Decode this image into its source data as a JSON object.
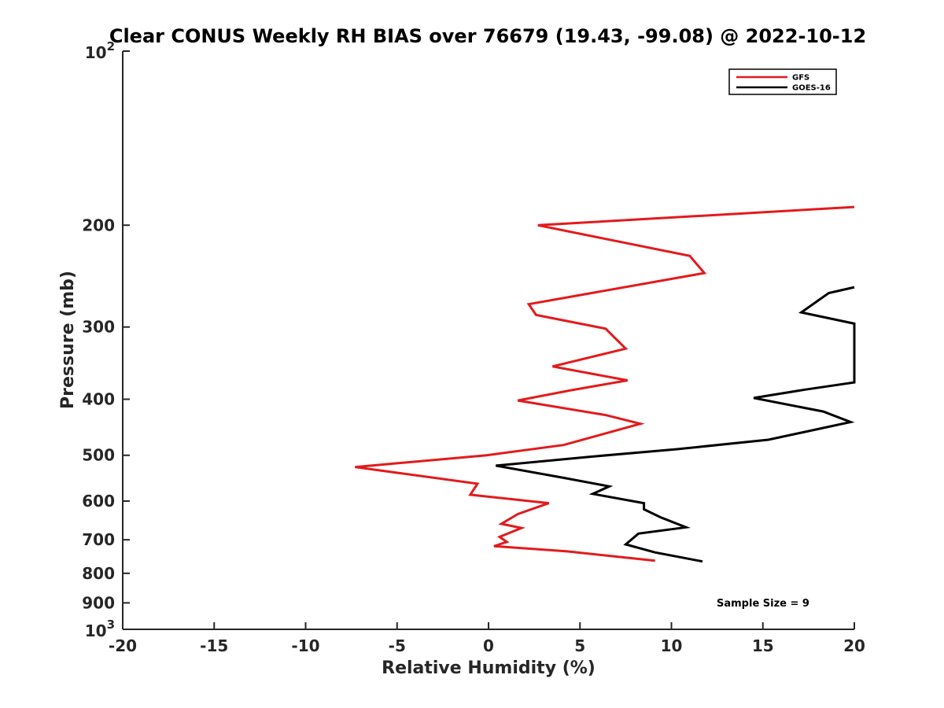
{
  "chart_data": {
    "type": "line",
    "title": "Clear CONUS Weekly RH BIAS over 76679 (19.43, -99.08) @ 2022-10-12",
    "xlabel": "Relative Humidity (%)",
    "ylabel": "Pressure (mb)",
    "xlim": [
      -20,
      20
    ],
    "ylim": [
      100,
      1000
    ],
    "y_scale": "log",
    "y_reversed": true,
    "x_ticks": [
      "-20",
      "-15",
      "-10",
      "-5",
      "0",
      "5",
      "10",
      "15",
      "20"
    ],
    "y_ticks": [
      {
        "value": 200,
        "label": "200"
      },
      {
        "value": 300,
        "label": "300"
      },
      {
        "value": 400,
        "label": "400"
      },
      {
        "value": 500,
        "label": "500"
      },
      {
        "value": 600,
        "label": "600"
      },
      {
        "value": 700,
        "label": "700"
      },
      {
        "value": 800,
        "label": "800"
      },
      {
        "value": 900,
        "label": "900"
      }
    ],
    "y_top_label": {
      "base": "10",
      "exp": "2"
    },
    "y_bottom_label": {
      "base": "10",
      "exp": "3"
    },
    "grid": false,
    "legend_position": "top-right",
    "annotation": "Sample Size = 9",
    "series": [
      {
        "name": "GFS",
        "color": "#e31a1c",
        "points": [
          [
            20.0,
            186
          ],
          [
            2.7,
            200
          ],
          [
            11.0,
            226
          ],
          [
            11.8,
            242
          ],
          [
            2.2,
            274
          ],
          [
            2.6,
            286
          ],
          [
            6.4,
            302
          ],
          [
            7.5,
            327
          ],
          [
            3.5,
            351
          ],
          [
            7.6,
            371
          ],
          [
            4.5,
            386
          ],
          [
            1.6,
            402
          ],
          [
            6.4,
            426
          ],
          [
            8.3,
            441
          ],
          [
            4.1,
            480
          ],
          [
            -0.1,
            500
          ],
          [
            -7.3,
            524
          ],
          [
            -0.6,
            560
          ],
          [
            -1.0,
            585
          ],
          [
            3.3,
            605
          ],
          [
            1.6,
            632
          ],
          [
            0.7,
            657
          ],
          [
            1.8,
            668
          ],
          [
            0.6,
            692
          ],
          [
            1.0,
            706
          ],
          [
            0.3,
            718
          ],
          [
            4.3,
            733
          ],
          [
            9.1,
            761
          ]
        ]
      },
      {
        "name": "GOES-16",
        "color": "#000000",
        "points": [
          [
            20.0,
            256
          ],
          [
            18.6,
            262
          ],
          [
            17.1,
            283
          ],
          [
            20.0,
            296
          ],
          [
            20.0,
            374
          ],
          [
            17.3,
            385
          ],
          [
            14.5,
            398
          ],
          [
            18.3,
            420
          ],
          [
            19.8,
            438
          ],
          [
            15.3,
            470
          ],
          [
            10.3,
            488
          ],
          [
            5.5,
            503
          ],
          [
            0.4,
            521
          ],
          [
            4.1,
            547
          ],
          [
            6.6,
            566
          ],
          [
            5.7,
            583
          ],
          [
            8.5,
            605
          ],
          [
            8.5,
            620
          ],
          [
            9.4,
            640
          ],
          [
            10.8,
            666
          ],
          [
            8.2,
            683
          ],
          [
            7.5,
            713
          ],
          [
            9.1,
            736
          ],
          [
            11.7,
            763
          ]
        ]
      }
    ]
  }
}
